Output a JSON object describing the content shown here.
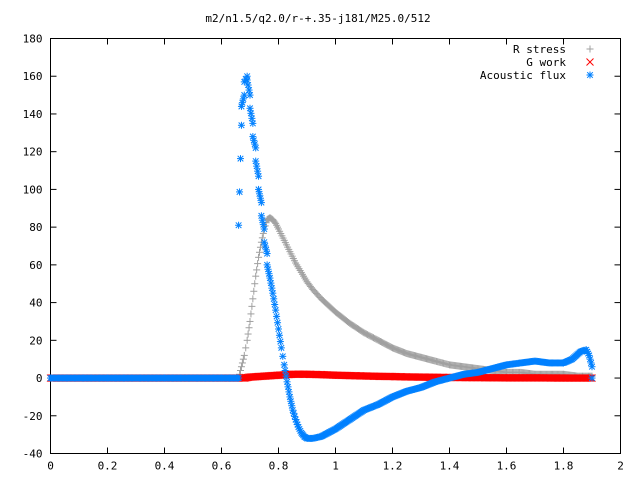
{
  "chart_data": {
    "type": "scatter",
    "title": "m2/n1.5/q2.0/r-+.35-j181/M25.0/512",
    "xlabel": "",
    "ylabel": "",
    "xlim": [
      0,
      2
    ],
    "ylim": [
      -40,
      180
    ],
    "x_ticks": [
      "0",
      "0.2",
      "0.4",
      "0.6",
      "0.8",
      "1",
      "1.2",
      "1.4",
      "1.6",
      "1.8",
      "2"
    ],
    "y_ticks": [
      "-40",
      "-20",
      "0",
      "20",
      "40",
      "60",
      "80",
      "100",
      "120",
      "140",
      "160",
      "180"
    ],
    "grid": false,
    "legend_position": "top-right",
    "series": [
      {
        "name": "R stress",
        "marker": "+",
        "color": "#a0a0a0",
        "points": [
          [
            0.0,
            0
          ],
          [
            0.2,
            0
          ],
          [
            0.4,
            0
          ],
          [
            0.6,
            0
          ],
          [
            0.66,
            0
          ],
          [
            0.67,
            6
          ],
          [
            0.68,
            12
          ],
          [
            0.69,
            20
          ],
          [
            0.7,
            30
          ],
          [
            0.71,
            42
          ],
          [
            0.72,
            54
          ],
          [
            0.73,
            64
          ],
          [
            0.74,
            72
          ],
          [
            0.75,
            79
          ],
          [
            0.76,
            84
          ],
          [
            0.77,
            85
          ],
          [
            0.78,
            84
          ],
          [
            0.79,
            82
          ],
          [
            0.8,
            79
          ],
          [
            0.82,
            73
          ],
          [
            0.84,
            67
          ],
          [
            0.86,
            61
          ],
          [
            0.88,
            56
          ],
          [
            0.9,
            51
          ],
          [
            0.92,
            47
          ],
          [
            0.95,
            42
          ],
          [
            1.0,
            35
          ],
          [
            1.05,
            29
          ],
          [
            1.1,
            24
          ],
          [
            1.15,
            20
          ],
          [
            1.2,
            16
          ],
          [
            1.25,
            13
          ],
          [
            1.3,
            11
          ],
          [
            1.35,
            9
          ],
          [
            1.4,
            7
          ],
          [
            1.45,
            6
          ],
          [
            1.5,
            5
          ],
          [
            1.55,
            4
          ],
          [
            1.6,
            3
          ],
          [
            1.65,
            3
          ],
          [
            1.7,
            2
          ],
          [
            1.75,
            2
          ],
          [
            1.8,
            2
          ],
          [
            1.85,
            1
          ],
          [
            1.9,
            1
          ]
        ]
      },
      {
        "name": "G work",
        "marker": "x",
        "color": "#ff0000",
        "points": [
          [
            0.0,
            0
          ],
          [
            0.2,
            0
          ],
          [
            0.4,
            0
          ],
          [
            0.6,
            0
          ],
          [
            0.68,
            0
          ],
          [
            0.7,
            0.5
          ],
          [
            0.75,
            1
          ],
          [
            0.8,
            1.5
          ],
          [
            0.85,
            2
          ],
          [
            0.9,
            2
          ],
          [
            0.95,
            1.8
          ],
          [
            1.0,
            1.5
          ],
          [
            1.05,
            1.3
          ],
          [
            1.1,
            1.1
          ],
          [
            1.15,
            0.9
          ],
          [
            1.2,
            0.8
          ],
          [
            1.25,
            0.6
          ],
          [
            1.3,
            0.5
          ],
          [
            1.35,
            0.4
          ],
          [
            1.4,
            0.3
          ],
          [
            1.5,
            0.2
          ],
          [
            1.6,
            0.1
          ],
          [
            1.7,
            0.1
          ],
          [
            1.8,
            0
          ],
          [
            1.9,
            0
          ]
        ]
      },
      {
        "name": "Acoustic flux",
        "marker": "*",
        "color": "#0080ff",
        "points": [
          [
            0.0,
            0
          ],
          [
            0.2,
            0
          ],
          [
            0.4,
            0
          ],
          [
            0.6,
            0
          ],
          [
            0.66,
            0
          ],
          [
            0.66,
            81
          ],
          [
            0.67,
            134
          ],
          [
            0.67,
            144
          ],
          [
            0.68,
            150
          ],
          [
            0.68,
            157
          ],
          [
            0.69,
            160
          ],
          [
            0.69,
            158
          ],
          [
            0.7,
            150
          ],
          [
            0.7,
            143
          ],
          [
            0.71,
            135
          ],
          [
            0.71,
            128
          ],
          [
            0.72,
            122
          ],
          [
            0.72,
            115
          ],
          [
            0.73,
            107
          ],
          [
            0.73,
            100
          ],
          [
            0.74,
            93
          ],
          [
            0.74,
            86
          ],
          [
            0.75,
            79
          ],
          [
            0.75,
            72
          ],
          [
            0.76,
            66
          ],
          [
            0.76,
            60
          ],
          [
            0.77,
            53
          ],
          [
            0.78,
            45
          ],
          [
            0.79,
            36
          ],
          [
            0.8,
            26
          ],
          [
            0.81,
            16
          ],
          [
            0.82,
            7
          ],
          [
            0.83,
            -2
          ],
          [
            0.84,
            -10
          ],
          [
            0.85,
            -17
          ],
          [
            0.86,
            -22
          ],
          [
            0.87,
            -26
          ],
          [
            0.88,
            -29
          ],
          [
            0.89,
            -31
          ],
          [
            0.9,
            -32
          ],
          [
            0.92,
            -32
          ],
          [
            0.95,
            -31
          ],
          [
            1.0,
            -27
          ],
          [
            1.05,
            -22
          ],
          [
            1.1,
            -17
          ],
          [
            1.15,
            -14
          ],
          [
            1.2,
            -10
          ],
          [
            1.25,
            -7
          ],
          [
            1.3,
            -5
          ],
          [
            1.35,
            -2
          ],
          [
            1.4,
            0
          ],
          [
            1.45,
            2
          ],
          [
            1.5,
            3
          ],
          [
            1.55,
            5
          ],
          [
            1.6,
            7
          ],
          [
            1.65,
            8
          ],
          [
            1.7,
            9
          ],
          [
            1.75,
            8
          ],
          [
            1.8,
            8
          ],
          [
            1.83,
            10
          ],
          [
            1.86,
            14
          ],
          [
            1.88,
            15
          ],
          [
            1.89,
            12
          ],
          [
            1.9,
            6
          ],
          [
            1.9,
            0
          ]
        ]
      }
    ]
  }
}
